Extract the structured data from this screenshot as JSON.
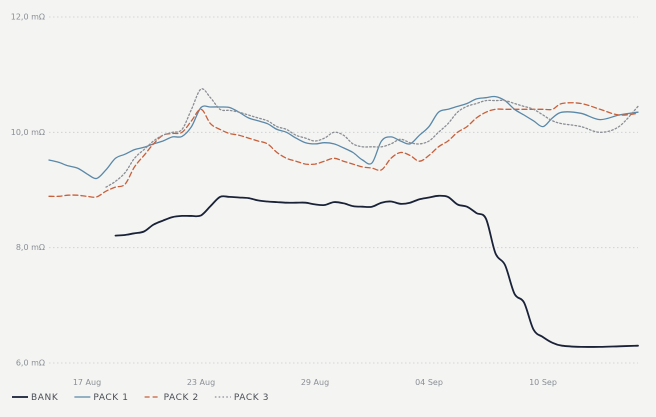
{
  "chart_data": {
    "type": "line",
    "title": "",
    "xlabel": "",
    "ylabel": "",
    "x_range": [
      "2023-08-15",
      "2023-09-15"
    ],
    "ylim": [
      6.0,
      12.0
    ],
    "y_ticks": [
      {
        "value": 6.0,
        "label": "6,0 mΩ"
      },
      {
        "value": 8.0,
        "label": "8,0 mΩ"
      },
      {
        "value": 10.0,
        "label": "10,0 mΩ"
      },
      {
        "value": 12.0,
        "label": "12,0 mΩ"
      }
    ],
    "x_ticks": [
      {
        "value": "2023-08-17",
        "label": "17 Aug"
      },
      {
        "value": "2023-08-23",
        "label": "23 Aug"
      },
      {
        "value": "2023-08-29",
        "label": "29 Aug"
      },
      {
        "value": "2023-09-04",
        "label": "04 Sep"
      },
      {
        "value": "2023-09-10",
        "label": "10 Sep"
      }
    ],
    "grid": "horizontal-dotted",
    "legend_position": "bottom-left",
    "series": [
      {
        "name": "BANK",
        "color": "#1a2238",
        "dash": "solid",
        "x": [
          "2023-08-17T00:00",
          "2023-08-17T12:00",
          "2023-08-18T00:00",
          "2023-08-18T12:00",
          "2023-08-19T00:00",
          "2023-08-19T12:00",
          "2023-08-20T00:00",
          "2023-08-20T12:00",
          "2023-08-21T00:00",
          "2023-08-21T12:00",
          "2023-08-22T00:00",
          "2023-08-22T12:00",
          "2023-08-23T00:00",
          "2023-08-23T12:00",
          "2023-08-24T00:00",
          "2023-08-24T12:00",
          "2023-08-25T00:00",
          "2023-08-25T12:00",
          "2023-08-26T00:00",
          "2023-08-26T12:00",
          "2023-08-27T00:00",
          "2023-08-27T12:00",
          "2023-08-28T00:00",
          "2023-08-28T12:00",
          "2023-08-29T00:00",
          "2023-08-29T12:00",
          "2023-08-30T00:00",
          "2023-08-30T12:00",
          "2023-08-31T00:00",
          "2023-08-31T12:00",
          "2023-09-01T00:00",
          "2023-09-01T12:00",
          "2023-09-02T00:00",
          "2023-09-02T12:00",
          "2023-09-03T00:00",
          "2023-09-03T12:00",
          "2023-09-04T00:00",
          "2023-09-04T12:00",
          "2023-09-05T00:00",
          "2023-09-05T12:00",
          "2023-09-06T00:00",
          "2023-09-06T12:00",
          "2023-09-07T00:00",
          "2023-09-07T12:00",
          "2023-09-08T00:00",
          "2023-09-08T12:00",
          "2023-09-09T00:00",
          "2023-09-09T12:00",
          "2023-09-10T00:00",
          "2023-09-10T12:00",
          "2023-09-11T00:00",
          "2023-09-12T00:00",
          "2023-09-13T00:00",
          "2023-09-14T00:00",
          "2023-09-15T00:00"
        ],
        "values": [
          null,
          null,
          null,
          8.21,
          8.22,
          8.25,
          8.28,
          8.4,
          8.47,
          8.53,
          8.55,
          8.55,
          8.56,
          8.72,
          8.88,
          8.88,
          8.87,
          8.86,
          8.82,
          8.8,
          8.79,
          8.78,
          8.78,
          8.78,
          8.75,
          8.74,
          8.79,
          8.77,
          8.72,
          8.71,
          8.71,
          8.78,
          8.8,
          8.76,
          8.78,
          8.84,
          8.87,
          8.9,
          8.88,
          8.75,
          8.71,
          8.6,
          8.5,
          7.9,
          7.7,
          7.2,
          7.05,
          6.58,
          6.45,
          6.35,
          6.3,
          6.28,
          6.28,
          6.29,
          6.3
        ]
      },
      {
        "name": "PACK 1",
        "color": "#5a88a8",
        "dash": "solid",
        "x": [
          "2023-08-15T00:00",
          "2023-08-15T12:00",
          "2023-08-16T00:00",
          "2023-08-16T12:00",
          "2023-08-17T00:00",
          "2023-08-17T12:00",
          "2023-08-18T00:00",
          "2023-08-18T12:00",
          "2023-08-19T00:00",
          "2023-08-19T12:00",
          "2023-08-20T00:00",
          "2023-08-20T12:00",
          "2023-08-21T00:00",
          "2023-08-21T12:00",
          "2023-08-22T00:00",
          "2023-08-22T12:00",
          "2023-08-23T00:00",
          "2023-08-23T12:00",
          "2023-08-24T00:00",
          "2023-08-24T12:00",
          "2023-08-25T00:00",
          "2023-08-25T12:00",
          "2023-08-26T00:00",
          "2023-08-26T12:00",
          "2023-08-27T00:00",
          "2023-08-27T12:00",
          "2023-08-28T00:00",
          "2023-08-28T12:00",
          "2023-08-29T00:00",
          "2023-08-29T12:00",
          "2023-08-30T00:00",
          "2023-08-30T12:00",
          "2023-08-31T00:00",
          "2023-08-31T12:00",
          "2023-09-01T00:00",
          "2023-09-01T12:00",
          "2023-09-02T00:00",
          "2023-09-02T12:00",
          "2023-09-03T00:00",
          "2023-09-03T12:00",
          "2023-09-04T00:00",
          "2023-09-04T12:00",
          "2023-09-05T00:00",
          "2023-09-05T12:00",
          "2023-09-06T00:00",
          "2023-09-06T12:00",
          "2023-09-07T00:00",
          "2023-09-07T12:00",
          "2023-09-08T00:00",
          "2023-09-08T12:00",
          "2023-09-09T00:00",
          "2023-09-09T12:00",
          "2023-09-10T00:00",
          "2023-09-10T12:00",
          "2023-09-11T00:00",
          "2023-09-12T00:00",
          "2023-09-13T00:00",
          "2023-09-14T00:00",
          "2023-09-15T00:00"
        ],
        "values": [
          9.52,
          9.48,
          9.42,
          9.38,
          9.28,
          9.2,
          9.35,
          9.55,
          9.62,
          9.7,
          9.74,
          9.8,
          9.85,
          9.92,
          9.93,
          10.1,
          10.43,
          10.44,
          10.44,
          10.43,
          10.35,
          10.25,
          10.2,
          10.15,
          10.05,
          10.0,
          9.9,
          9.82,
          9.8,
          9.82,
          9.8,
          9.73,
          9.65,
          9.52,
          9.47,
          9.85,
          9.92,
          9.85,
          9.8,
          9.95,
          10.1,
          10.35,
          10.4,
          10.45,
          10.5,
          10.58,
          10.6,
          10.62,
          10.55,
          10.4,
          10.3,
          10.2,
          10.1,
          10.25,
          10.35,
          10.33,
          10.22,
          10.3,
          10.35
        ]
      },
      {
        "name": "PACK 2",
        "color": "#c8603c",
        "dash": "dashed",
        "x": [
          "2023-08-15T00:00",
          "2023-08-15T12:00",
          "2023-08-16T00:00",
          "2023-08-16T12:00",
          "2023-08-17T00:00",
          "2023-08-17T12:00",
          "2023-08-18T00:00",
          "2023-08-18T12:00",
          "2023-08-19T00:00",
          "2023-08-19T12:00",
          "2023-08-20T00:00",
          "2023-08-20T12:00",
          "2023-08-21T00:00",
          "2023-08-21T12:00",
          "2023-08-22T00:00",
          "2023-08-22T12:00",
          "2023-08-23T00:00",
          "2023-08-23T12:00",
          "2023-08-24T00:00",
          "2023-08-24T12:00",
          "2023-08-25T00:00",
          "2023-08-25T12:00",
          "2023-08-26T00:00",
          "2023-08-26T12:00",
          "2023-08-27T00:00",
          "2023-08-27T12:00",
          "2023-08-28T00:00",
          "2023-08-28T12:00",
          "2023-08-29T00:00",
          "2023-08-29T12:00",
          "2023-08-30T00:00",
          "2023-08-30T12:00",
          "2023-08-31T00:00",
          "2023-08-31T12:00",
          "2023-09-01T00:00",
          "2023-09-01T12:00",
          "2023-09-02T00:00",
          "2023-09-02T12:00",
          "2023-09-03T00:00",
          "2023-09-03T12:00",
          "2023-09-04T00:00",
          "2023-09-04T12:00",
          "2023-09-05T00:00",
          "2023-09-05T12:00",
          "2023-09-06T00:00",
          "2023-09-06T12:00",
          "2023-09-07T00:00",
          "2023-09-07T12:00",
          "2023-09-08T00:00",
          "2023-09-08T12:00",
          "2023-09-09T00:00",
          "2023-09-09T12:00",
          "2023-09-10T00:00",
          "2023-09-10T12:00",
          "2023-09-11T00:00",
          "2023-09-12T00:00",
          "2023-09-13T00:00",
          "2023-09-14T00:00",
          "2023-09-15T00:00"
        ],
        "values": [
          8.89,
          8.89,
          8.91,
          8.91,
          8.89,
          8.88,
          8.98,
          9.05,
          9.1,
          9.4,
          9.6,
          9.8,
          9.95,
          9.98,
          10.0,
          10.2,
          10.4,
          10.15,
          10.05,
          9.98,
          9.95,
          9.9,
          9.85,
          9.8,
          9.65,
          9.55,
          9.5,
          9.45,
          9.45,
          9.5,
          9.55,
          9.5,
          9.45,
          9.4,
          9.38,
          9.35,
          9.55,
          9.65,
          9.6,
          9.5,
          9.6,
          9.75,
          9.85,
          10.0,
          10.1,
          10.25,
          10.35,
          10.4,
          10.4,
          10.4,
          10.4,
          10.4,
          10.4,
          10.4,
          10.5,
          10.5,
          10.4,
          10.3,
          10.33
        ]
      },
      {
        "name": "PACK 3",
        "color": "#8a8e94",
        "dash": "dotted",
        "x": [
          "2023-08-17T00:00",
          "2023-08-17T12:00",
          "2023-08-18T00:00",
          "2023-08-18T12:00",
          "2023-08-19T00:00",
          "2023-08-19T12:00",
          "2023-08-20T00:00",
          "2023-08-20T12:00",
          "2023-08-21T00:00",
          "2023-08-21T12:00",
          "2023-08-22T00:00",
          "2023-08-22T12:00",
          "2023-08-23T00:00",
          "2023-08-23T12:00",
          "2023-08-24T00:00",
          "2023-08-24T12:00",
          "2023-08-25T00:00",
          "2023-08-25T12:00",
          "2023-08-26T00:00",
          "2023-08-26T12:00",
          "2023-08-27T00:00",
          "2023-08-27T12:00",
          "2023-08-28T00:00",
          "2023-08-28T12:00",
          "2023-08-29T00:00",
          "2023-08-29T12:00",
          "2023-08-30T00:00",
          "2023-08-30T12:00",
          "2023-08-31T00:00",
          "2023-08-31T12:00",
          "2023-09-01T00:00",
          "2023-09-01T12:00",
          "2023-09-02T00:00",
          "2023-09-02T12:00",
          "2023-09-03T00:00",
          "2023-09-03T12:00",
          "2023-09-04T00:00",
          "2023-09-04T12:00",
          "2023-09-05T00:00",
          "2023-09-05T12:00",
          "2023-09-06T00:00",
          "2023-09-06T12:00",
          "2023-09-07T00:00",
          "2023-09-07T12:00",
          "2023-09-08T00:00",
          "2023-09-08T12:00",
          "2023-09-09T00:00",
          "2023-09-09T12:00",
          "2023-09-10T00:00",
          "2023-09-10T12:00",
          "2023-09-11T00:00",
          "2023-09-12T00:00",
          "2023-09-13T00:00",
          "2023-09-14T00:00",
          "2023-09-15T00:00"
        ],
        "values": [
          null,
          null,
          9.05,
          9.15,
          9.3,
          9.55,
          9.7,
          9.85,
          9.95,
          10.0,
          10.05,
          10.4,
          10.75,
          10.6,
          10.4,
          10.38,
          10.35,
          10.3,
          10.25,
          10.2,
          10.1,
          10.05,
          9.95,
          9.9,
          9.85,
          9.9,
          10.0,
          9.95,
          9.8,
          9.75,
          9.75,
          9.75,
          9.8,
          9.88,
          9.82,
          9.8,
          9.85,
          10.0,
          10.15,
          10.35,
          10.45,
          10.5,
          10.55,
          10.55,
          10.55,
          10.5,
          10.45,
          10.4,
          10.3,
          10.2,
          10.15,
          10.1,
          10.0,
          10.1,
          10.45
        ]
      }
    ]
  }
}
